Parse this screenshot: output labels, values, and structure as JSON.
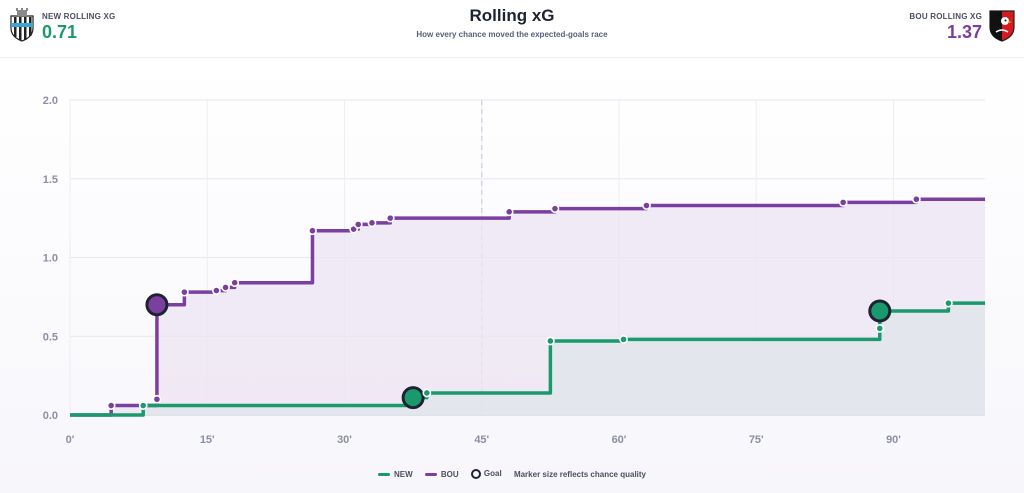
{
  "header": {
    "title": "Rolling xG",
    "subtitle": "How every chance moved the expected-goals race",
    "home": {
      "label": "NEW ROLLING XG",
      "value": "0.71",
      "color": "#1a9a6c",
      "crest_icon": "newcastle-crest-icon"
    },
    "away": {
      "label": "BOU ROLLING XG",
      "value": "1.37",
      "color": "#7b3fa0",
      "crest_icon": "bournemouth-crest-icon"
    }
  },
  "legend": {
    "home": "NEW",
    "away": "BOU",
    "goal": "Goal",
    "note": "Marker size reflects chance quality"
  },
  "chart_data": {
    "type": "line",
    "step": true,
    "xlim": [
      0,
      100
    ],
    "ylim": [
      0,
      2.0
    ],
    "x_ticks": [
      0,
      15,
      30,
      45,
      60,
      75,
      90
    ],
    "x_tick_labels": [
      "0'",
      "15'",
      "30'",
      "45'",
      "60'",
      "75'",
      "90'"
    ],
    "y_ticks": [
      0,
      0.5,
      1.0,
      1.5,
      2.0
    ],
    "y_tick_labels": [
      "0.0",
      "0.5",
      "1.0",
      "1.5",
      "2.0"
    ],
    "grid": true,
    "halftime_line": 45,
    "series": [
      {
        "name": "NEW",
        "color": "#1a9a6c",
        "end_x": 100,
        "points": [
          {
            "x": 8,
            "y": 0.06,
            "goal": false
          },
          {
            "x": 37.5,
            "y": 0.11,
            "goal": true
          },
          {
            "x": 39,
            "y": 0.14,
            "goal": false
          },
          {
            "x": 52.5,
            "y": 0.47,
            "goal": false
          },
          {
            "x": 60.5,
            "y": 0.48,
            "goal": false
          },
          {
            "x": 88.5,
            "y": 0.55,
            "goal": false
          },
          {
            "x": 88.5,
            "y": 0.66,
            "goal": true
          },
          {
            "x": 96,
            "y": 0.71,
            "goal": false
          }
        ]
      },
      {
        "name": "BOU",
        "color": "#7b3fa0",
        "end_x": 100,
        "points": [
          {
            "x": 4.5,
            "y": 0.06,
            "goal": false
          },
          {
            "x": 9.5,
            "y": 0.1,
            "goal": false
          },
          {
            "x": 9.5,
            "y": 0.7,
            "goal": true
          },
          {
            "x": 12.5,
            "y": 0.78,
            "goal": false
          },
          {
            "x": 16,
            "y": 0.79,
            "goal": false
          },
          {
            "x": 17,
            "y": 0.81,
            "goal": false
          },
          {
            "x": 18,
            "y": 0.84,
            "goal": false
          },
          {
            "x": 26.5,
            "y": 1.17,
            "goal": false
          },
          {
            "x": 31,
            "y": 1.18,
            "goal": false
          },
          {
            "x": 31.5,
            "y": 1.21,
            "goal": false
          },
          {
            "x": 33,
            "y": 1.22,
            "goal": false
          },
          {
            "x": 35,
            "y": 1.25,
            "goal": false
          },
          {
            "x": 48,
            "y": 1.29,
            "goal": false
          },
          {
            "x": 53,
            "y": 1.31,
            "goal": false
          },
          {
            "x": 63,
            "y": 1.33,
            "goal": false
          },
          {
            "x": 84.5,
            "y": 1.35,
            "goal": false
          },
          {
            "x": 92.5,
            "y": 1.37,
            "goal": false
          }
        ]
      }
    ]
  }
}
